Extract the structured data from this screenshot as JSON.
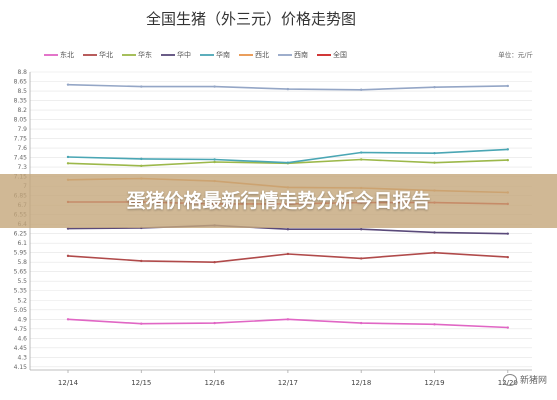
{
  "banner": {
    "text": "蛋猪价格最新行情走势分析今日报告"
  },
  "watermark": {
    "text": "新猪网"
  },
  "chart_data": {
    "type": "line",
    "title": "全国生猪（外三元）价格走势图",
    "unit": "单位：元/斤",
    "categories": [
      "12/14",
      "12/15",
      "12/16",
      "12/17",
      "12/18",
      "12/19",
      "12/20"
    ],
    "ylim": [
      4.1,
      8.8
    ],
    "yticks": [
      "8.8",
      "8.65",
      "8.5",
      "8.35",
      "8.2",
      "8.05",
      "7.9",
      "7.75",
      "7.6",
      "7.45",
      "7.3",
      "7.15",
      "7",
      "6.85",
      "6.7",
      "6.55",
      "6.4",
      "6.25",
      "6.1",
      "5.95",
      "5.8",
      "5.65",
      "5.5",
      "5.35",
      "5.2",
      "5.05",
      "4.9",
      "4.75",
      "4.6",
      "4.45",
      "4.3",
      "4.15"
    ],
    "grid": true,
    "legend_position": "top",
    "series": [
      {
        "name": "东北",
        "color": "#e066c4",
        "values": [
          4.9,
          4.83,
          4.84,
          4.9,
          4.84,
          4.82,
          4.77
        ]
      },
      {
        "name": "华北",
        "color": "#b04a4a",
        "values": [
          5.9,
          5.82,
          5.8,
          5.93,
          5.86,
          5.95,
          5.88
        ]
      },
      {
        "name": "华东",
        "color": "#9cb84a",
        "values": [
          7.36,
          7.32,
          7.38,
          7.36,
          7.42,
          7.37,
          7.41
        ]
      },
      {
        "name": "华中",
        "color": "#5a4a7a",
        "values": [
          6.33,
          6.34,
          6.38,
          6.32,
          6.32,
          6.27,
          6.25
        ]
      },
      {
        "name": "华南",
        "color": "#4aa6b4",
        "values": [
          7.46,
          7.43,
          7.42,
          7.37,
          7.53,
          7.52,
          7.58
        ]
      },
      {
        "name": "西北",
        "color": "#e8944a",
        "values": [
          7.1,
          7.12,
          7.08,
          6.98,
          6.97,
          6.93,
          6.9
        ]
      },
      {
        "name": "西南",
        "color": "#94a6c6",
        "values": [
          8.6,
          8.57,
          8.57,
          8.53,
          8.52,
          8.56,
          8.58
        ]
      },
      {
        "name": "全国",
        "color": "#cc2222",
        "values": [
          6.75,
          6.75,
          6.72,
          6.72,
          6.74,
          6.74,
          6.72
        ]
      }
    ]
  }
}
